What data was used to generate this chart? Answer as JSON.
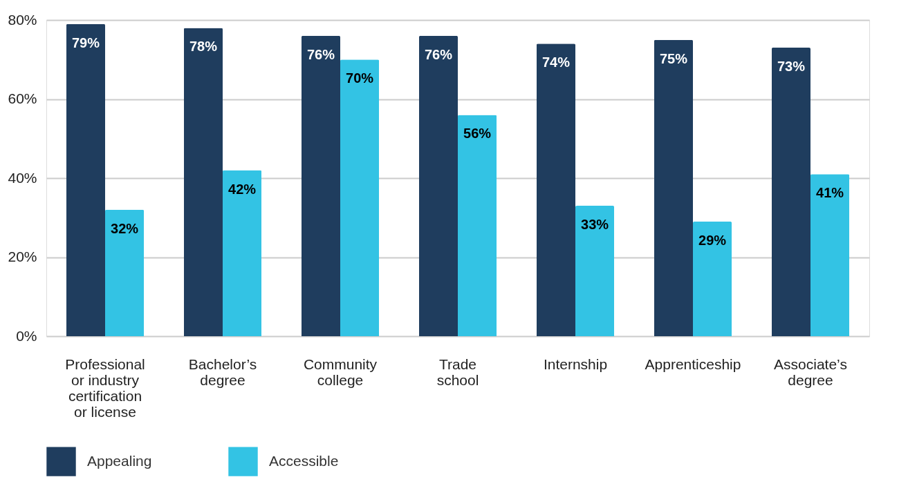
{
  "chart_data": {
    "type": "bar",
    "categories": [
      "Professional or industry certification or license",
      "Bachelor’s degree",
      "Community college",
      "Trade school",
      "Internship",
      "Apprenticeship",
      "Associate’s degree"
    ],
    "series": [
      {
        "name": "Appealing",
        "color": "#1f3d5e",
        "values": [
          79,
          78,
          76,
          76,
          74,
          75,
          73
        ],
        "value_labels": [
          "79%",
          "78%",
          "76%",
          "76%",
          "74%",
          "75%",
          "73%"
        ]
      },
      {
        "name": "Accessible",
        "color": "#33c3e4",
        "values": [
          32,
          42,
          70,
          56,
          33,
          29,
          41
        ],
        "value_labels": [
          "32%",
          "42%",
          "70%",
          "56%",
          "33%",
          "29%",
          "41%"
        ]
      }
    ],
    "ylim": [
      0,
      80
    ],
    "yticks": [
      {
        "value": 0,
        "label": "0%"
      },
      {
        "value": 20,
        "label": "20%"
      },
      {
        "value": 40,
        "label": "40%"
      },
      {
        "value": 60,
        "label": "60%"
      },
      {
        "value": 80,
        "label": "80%"
      }
    ],
    "grid": "y",
    "legend": "bottom"
  }
}
